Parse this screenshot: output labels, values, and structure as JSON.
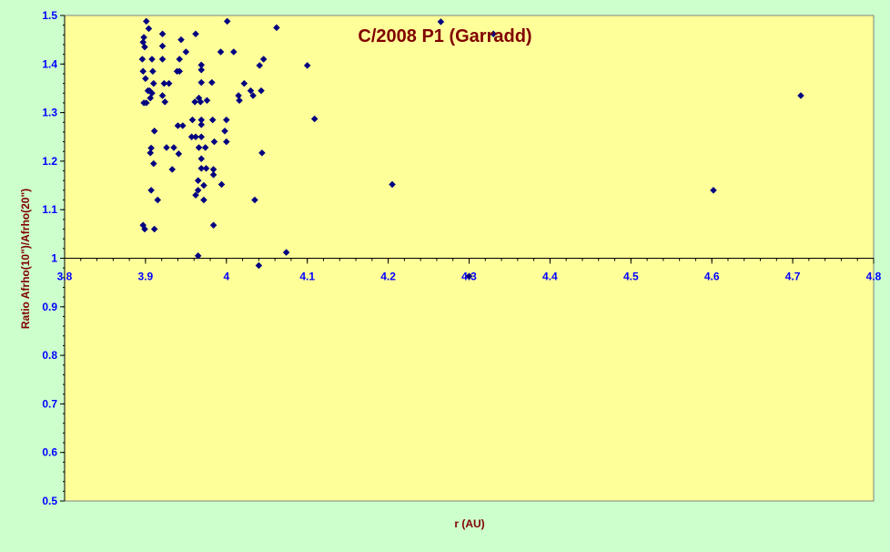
{
  "chart_data": {
    "type": "scatter",
    "title": "C/2008 P1 (Garradd)",
    "xlabel": "r (AU)",
    "ylabel": "Ratio Afrho(10\")/Afrho(20\")",
    "xlim": [
      3.8,
      4.8
    ],
    "ylim": [
      0.5,
      1.5
    ],
    "x_ticks": [
      "3.8",
      "3.9",
      "4",
      "4.1",
      "4.2",
      "4.3",
      "4.4",
      "4.5",
      "4.6",
      "4.7",
      "4.8"
    ],
    "y_ticks": [
      "0.5",
      "0.6",
      "0.7",
      "0.8",
      "0.9",
      "1",
      "1.1",
      "1.2",
      "1.3",
      "1.4",
      "1.5"
    ],
    "x_axis_crosses_at": 1.0,
    "grid": false,
    "legend": "none",
    "colors": {
      "background": "#ccffcc",
      "plot_area": "#ffff99",
      "marker": "#000080",
      "title": "#800000",
      "tick_labels": "#0000ff"
    },
    "series": [
      {
        "points": [
          [
            3.901,
            1.488
          ],
          [
            3.904,
            1.473
          ],
          [
            3.898,
            1.455
          ],
          [
            3.897,
            1.445
          ],
          [
            3.899,
            1.435
          ],
          [
            3.896,
            1.41
          ],
          [
            3.908,
            1.41
          ],
          [
            3.897,
            1.385
          ],
          [
            3.909,
            1.385
          ],
          [
            3.9,
            1.37
          ],
          [
            3.91,
            1.36
          ],
          [
            3.905,
            1.345
          ],
          [
            3.903,
            1.345
          ],
          [
            3.908,
            1.34
          ],
          [
            3.906,
            1.33
          ],
          [
            3.898,
            1.32
          ],
          [
            3.901,
            1.32
          ],
          [
            3.911,
            1.262
          ],
          [
            3.906,
            1.217
          ],
          [
            3.907,
            1.227
          ],
          [
            3.91,
            1.195
          ],
          [
            3.907,
            1.14
          ],
          [
            3.915,
            1.12
          ],
          [
            3.897,
            1.068
          ],
          [
            3.899,
            1.06
          ],
          [
            3.911,
            1.06
          ],
          [
            3.921,
            1.462
          ],
          [
            3.921,
            1.437
          ],
          [
            3.921,
            1.41
          ],
          [
            3.923,
            1.36
          ],
          [
            3.929,
            1.36
          ],
          [
            3.921,
            1.335
          ],
          [
            3.924,
            1.322
          ],
          [
            3.926,
            1.228
          ],
          [
            3.935,
            1.228
          ],
          [
            3.933,
            1.183
          ],
          [
            3.941,
            1.215
          ],
          [
            3.944,
            1.45
          ],
          [
            3.942,
            1.41
          ],
          [
            3.95,
            1.425
          ],
          [
            3.939,
            1.385
          ],
          [
            3.942,
            1.385
          ],
          [
            3.94,
            1.273
          ],
          [
            3.946,
            1.273
          ],
          [
            3.958,
            1.285
          ],
          [
            3.957,
            1.25
          ],
          [
            3.962,
            1.25
          ],
          [
            3.962,
            1.462
          ],
          [
            3.968,
            1.322
          ],
          [
            3.966,
            1.33
          ],
          [
            3.961,
            1.322
          ],
          [
            3.969,
            1.398
          ],
          [
            3.969,
            1.388
          ],
          [
            3.969,
            1.362
          ],
          [
            3.969,
            1.285
          ],
          [
            3.969,
            1.275
          ],
          [
            3.969,
            1.25
          ],
          [
            3.966,
            1.228
          ],
          [
            3.974,
            1.228
          ],
          [
            3.969,
            1.205
          ],
          [
            3.969,
            1.185
          ],
          [
            3.975,
            1.185
          ],
          [
            3.965,
            1.16
          ],
          [
            3.972,
            1.15
          ],
          [
            3.965,
            1.14
          ],
          [
            3.962,
            1.13
          ],
          [
            3.972,
            1.12
          ],
          [
            3.965,
            1.005
          ],
          [
            3.976,
            1.325
          ],
          [
            3.982,
            1.362
          ],
          [
            3.983,
            1.285
          ],
          [
            3.985,
            1.24
          ],
          [
            3.984,
            1.183
          ],
          [
            3.984,
            1.172
          ],
          [
            3.994,
            1.152
          ],
          [
            3.984,
            1.068
          ],
          [
            3.993,
            1.425
          ],
          [
            4.001,
            1.488
          ],
          [
            4.0,
            1.285
          ],
          [
            3.998,
            1.262
          ],
          [
            4.0,
            1.24
          ],
          [
            4.009,
            1.425
          ],
          [
            4.015,
            1.335
          ],
          [
            4.016,
            1.325
          ],
          [
            4.022,
            1.36
          ],
          [
            4.03,
            1.345
          ],
          [
            4.033,
            1.335
          ],
          [
            4.041,
            1.397
          ],
          [
            4.043,
            1.345
          ],
          [
            4.046,
            1.41
          ],
          [
            4.044,
            1.217
          ],
          [
            4.035,
            1.12
          ],
          [
            4.04,
            0.985
          ],
          [
            4.062,
            1.475
          ],
          [
            4.074,
            1.012
          ],
          [
            4.1,
            1.397
          ],
          [
            4.109,
            1.287
          ],
          [
            4.205,
            1.152
          ],
          [
            4.265,
            1.487
          ],
          [
            4.3,
            0.963
          ],
          [
            4.33,
            1.462
          ],
          [
            4.602,
            1.14
          ],
          [
            4.71,
            1.335
          ]
        ]
      }
    ]
  }
}
